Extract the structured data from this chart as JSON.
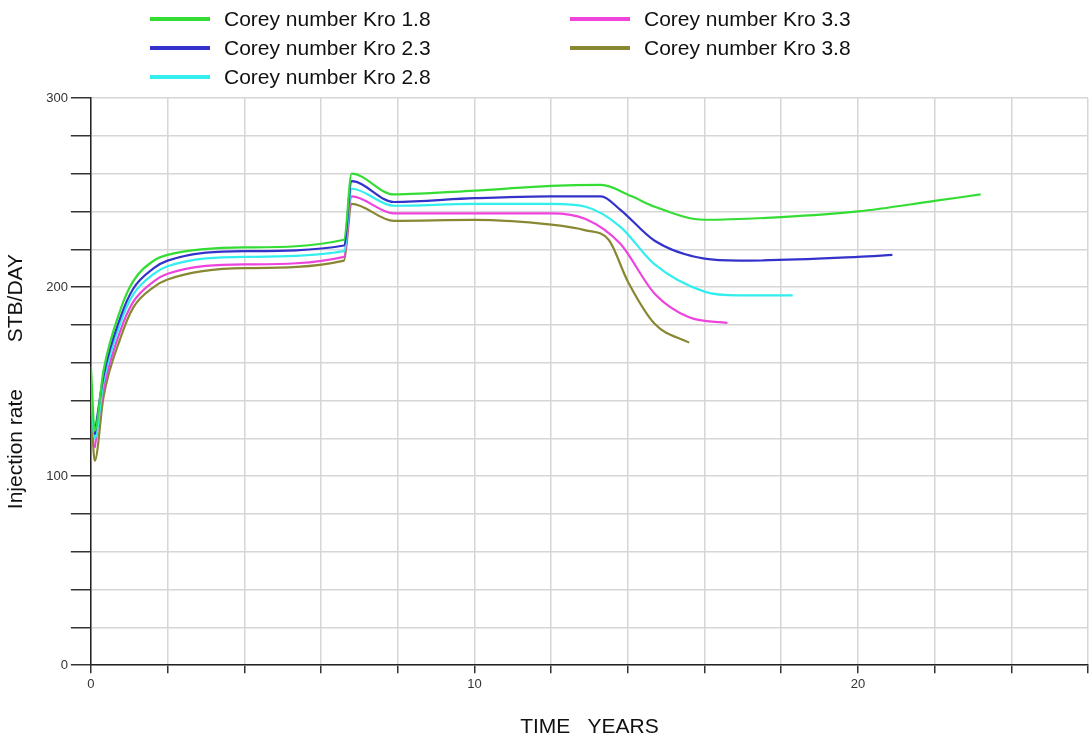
{
  "chart_data": {
    "type": "line",
    "xlabel": "TIME   YEARS",
    "ylabel": "Injection rate        STB/DAY",
    "xlim": [
      0,
      26
    ],
    "ylim": [
      0,
      300
    ],
    "xticks": [
      0,
      {
        "value": 2,
        "label": null
      },
      {
        "value": 4,
        "label": null
      },
      {
        "value": 6,
        "label": null
      },
      {
        "value": 8,
        "label": null
      },
      10,
      {
        "value": 12,
        "label": null
      },
      {
        "value": 14,
        "label": null
      },
      {
        "value": 16,
        "label": null
      },
      {
        "value": 18,
        "label": null
      },
      20,
      {
        "value": 22,
        "label": null
      },
      {
        "value": 24,
        "label": null
      },
      {
        "value": 26,
        "label": null
      }
    ],
    "yticks": [
      0,
      {
        "value": 20,
        "label": null
      },
      {
        "value": 40,
        "label": null
      },
      {
        "value": 60,
        "label": null
      },
      {
        "value": 80,
        "label": null
      },
      100,
      {
        "value": 120,
        "label": null
      },
      {
        "value": 140,
        "label": null
      },
      {
        "value": 160,
        "label": null
      },
      {
        "value": 180,
        "label": null
      },
      200,
      {
        "value": 220,
        "label": null
      },
      {
        "value": 240,
        "label": null
      },
      {
        "value": 260,
        "label": null
      },
      {
        "value": 280,
        "label": null
      },
      300
    ],
    "grid": true,
    "legend": "top left",
    "marker": "none",
    "line_style": "solid",
    "series": [
      {
        "name": "Corey number Kro 1.8",
        "color": "#33dd33",
        "x": [
          0,
          0.1,
          0.33,
          0.77,
          1.1,
          1.64,
          2,
          4,
          6.6,
          6.8,
          7.9,
          10,
          12,
          13.3,
          14.1,
          14.7,
          16,
          18,
          20,
          22,
          23.2
        ],
        "values": [
          158,
          124,
          156,
          188,
          203,
          214,
          217,
          221,
          225,
          260,
          249,
          251,
          253.5,
          254,
          248,
          242.5,
          235.6,
          237,
          240,
          245.6,
          249
        ]
      },
      {
        "name": "Corey number Kro 2.3",
        "color": "#3333cc",
        "x": [
          0.1,
          0.33,
          0.77,
          1.1,
          1.64,
          2,
          4,
          6.6,
          6.8,
          7.9,
          10,
          12,
          13.3,
          13.8,
          14.7,
          16,
          16.9,
          20,
          20.9
        ],
        "values": [
          122,
          153,
          184,
          199,
          210,
          214,
          219,
          222,
          256,
          245,
          247,
          248,
          248,
          241,
          224.5,
          215,
          214,
          216,
          217
        ]
      },
      {
        "name": "Corey number Kro 2.8",
        "color": "#33eeee",
        "x": [
          0,
          0.1,
          0.33,
          0.77,
          1.1,
          1.64,
          2,
          4,
          6.6,
          6.8,
          7.9,
          10,
          12,
          12.9,
          13.8,
          14.7,
          16,
          16.9,
          18.3
        ],
        "values": [
          150,
          120,
          150,
          181,
          196,
          207,
          211,
          216,
          219,
          252,
          243,
          244,
          244,
          242.5,
          232,
          212,
          197.6,
          195.6,
          195.6
        ]
      },
      {
        "name": "Corey number Kro 3.3",
        "color": "#ee44dd",
        "x": [
          0.1,
          0.33,
          0.77,
          1.1,
          1.64,
          2,
          4,
          6.6,
          6.8,
          7.9,
          10,
          12,
          12.9,
          13.8,
          14.7,
          15.6,
          16.6
        ],
        "values": [
          115,
          146,
          177,
          192,
          203,
          207,
          212,
          216,
          248,
          239,
          239,
          239,
          236,
          223,
          196.5,
          184,
          181
        ]
      },
      {
        "name": "Corey number Kro 3.8",
        "color": "#888833",
        "x": [
          0,
          0.1,
          0.33,
          0.77,
          1.1,
          1.64,
          2,
          4,
          6.6,
          6.8,
          7.9,
          10,
          12,
          12.9,
          13.5,
          14,
          14.7,
          15.6
        ],
        "values": [
          140,
          108,
          142,
          173,
          189,
          200,
          204,
          210,
          214,
          244,
          235,
          235.5,
          233,
          230,
          225,
          203,
          180.6,
          170.6
        ]
      }
    ]
  }
}
